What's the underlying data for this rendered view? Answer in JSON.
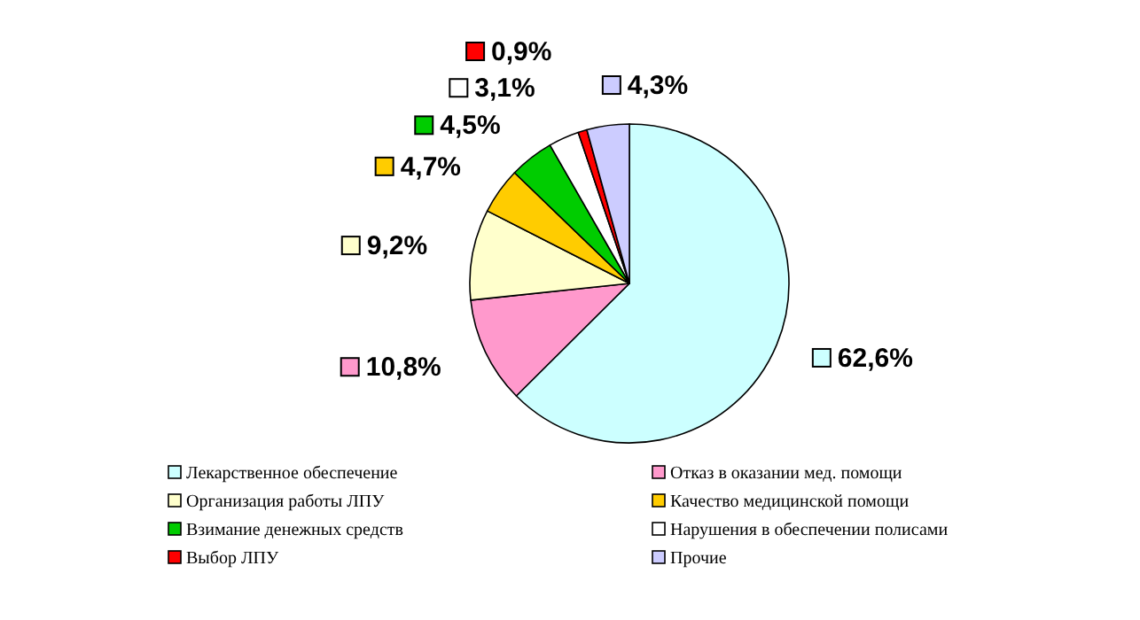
{
  "chart_data": {
    "type": "pie",
    "categories": [
      "Лекарственное обеспечение",
      "Отказ в оказании мед. помощи",
      "Организация работы ЛПУ",
      "Качество медицинской помощи",
      "Взимание денежных средств",
      "Нарушения в обеспечении полисами",
      "Выбор ЛПУ",
      "Прочие"
    ],
    "values": [
      62.6,
      10.8,
      9.2,
      4.7,
      4.5,
      3.1,
      0.9,
      4.3
    ],
    "value_labels": [
      "62,6%",
      "10,8%",
      "9,2%",
      "4,7%",
      "4,5%",
      "3,1%",
      "0,9%",
      "4,3%"
    ],
    "colors": [
      "#ccffff",
      "#ff99cc",
      "#ffffcc",
      "#ffcc00",
      "#00cc00",
      "#ffffff",
      "#ff0000",
      "#ccccff"
    ],
    "legend": "bottom"
  }
}
